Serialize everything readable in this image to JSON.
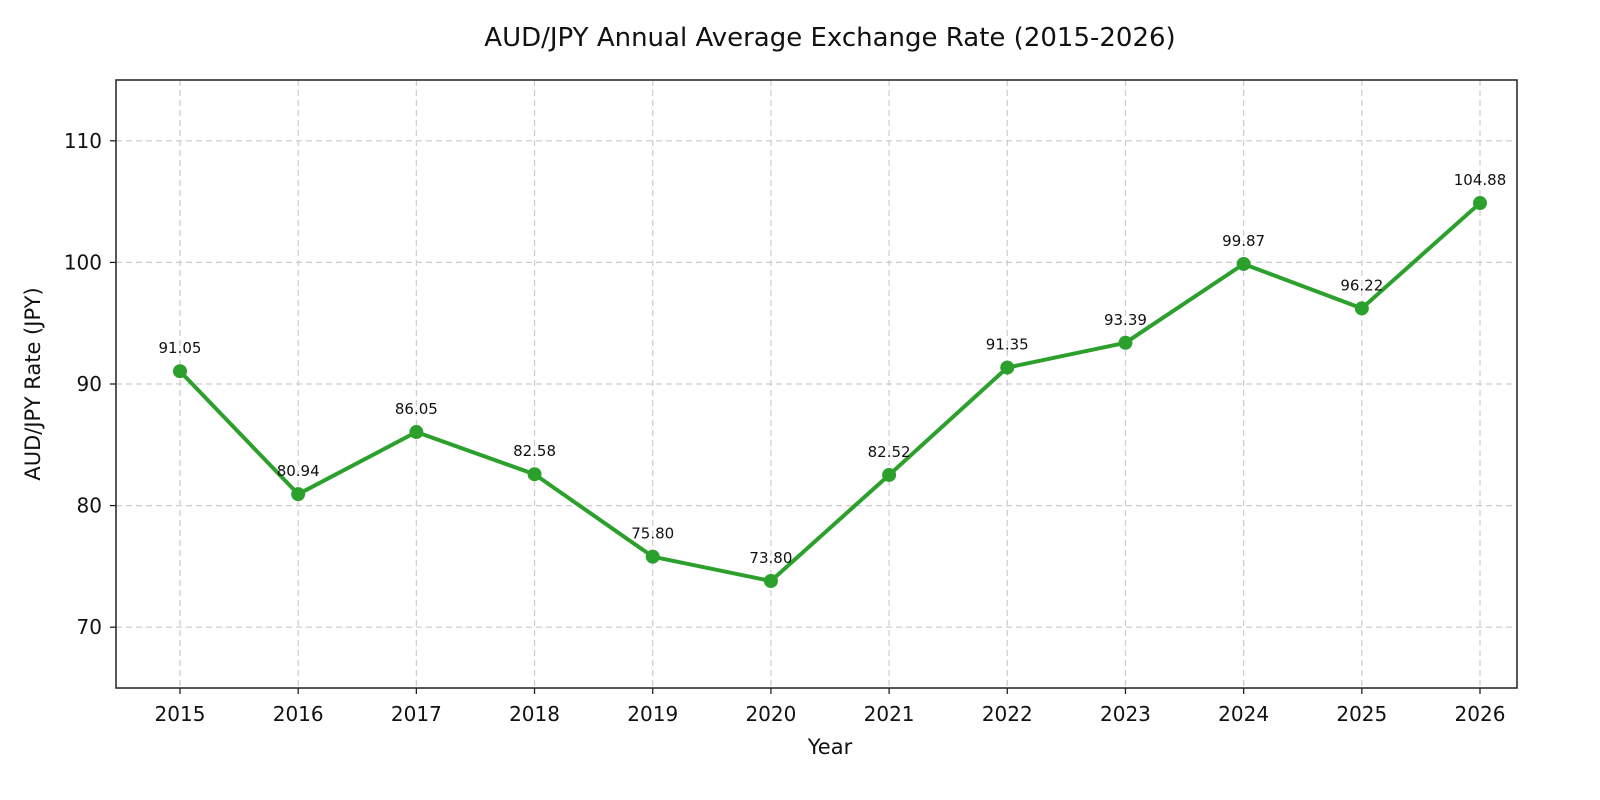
{
  "chart_data": {
    "type": "line",
    "title": "AUD/JPY Annual Average Exchange Rate (2015-2026)",
    "xlabel": "Year",
    "ylabel": "AUD/JPY Rate (JPY)",
    "x": [
      "2015",
      "2016",
      "2017",
      "2018",
      "2019",
      "2020",
      "2021",
      "2022",
      "2023",
      "2024",
      "2025",
      "2026"
    ],
    "series": [
      {
        "values": [
          91.05,
          80.94,
          86.05,
          82.58,
          75.8,
          73.8,
          82.52,
          91.35,
          93.39,
          99.87,
          96.22,
          104.88
        ],
        "data_labels": [
          "91.05",
          "80.94",
          "86.05",
          "82.58",
          "75.80",
          "73.80",
          "82.52",
          "91.35",
          "93.39",
          "99.87",
          "96.22",
          "104.88"
        ],
        "color": "#2ca02c"
      }
    ],
    "ylim": [
      65,
      115
    ],
    "yticks": [
      70,
      80,
      90,
      100,
      110
    ],
    "grid": true,
    "legend": "none"
  }
}
